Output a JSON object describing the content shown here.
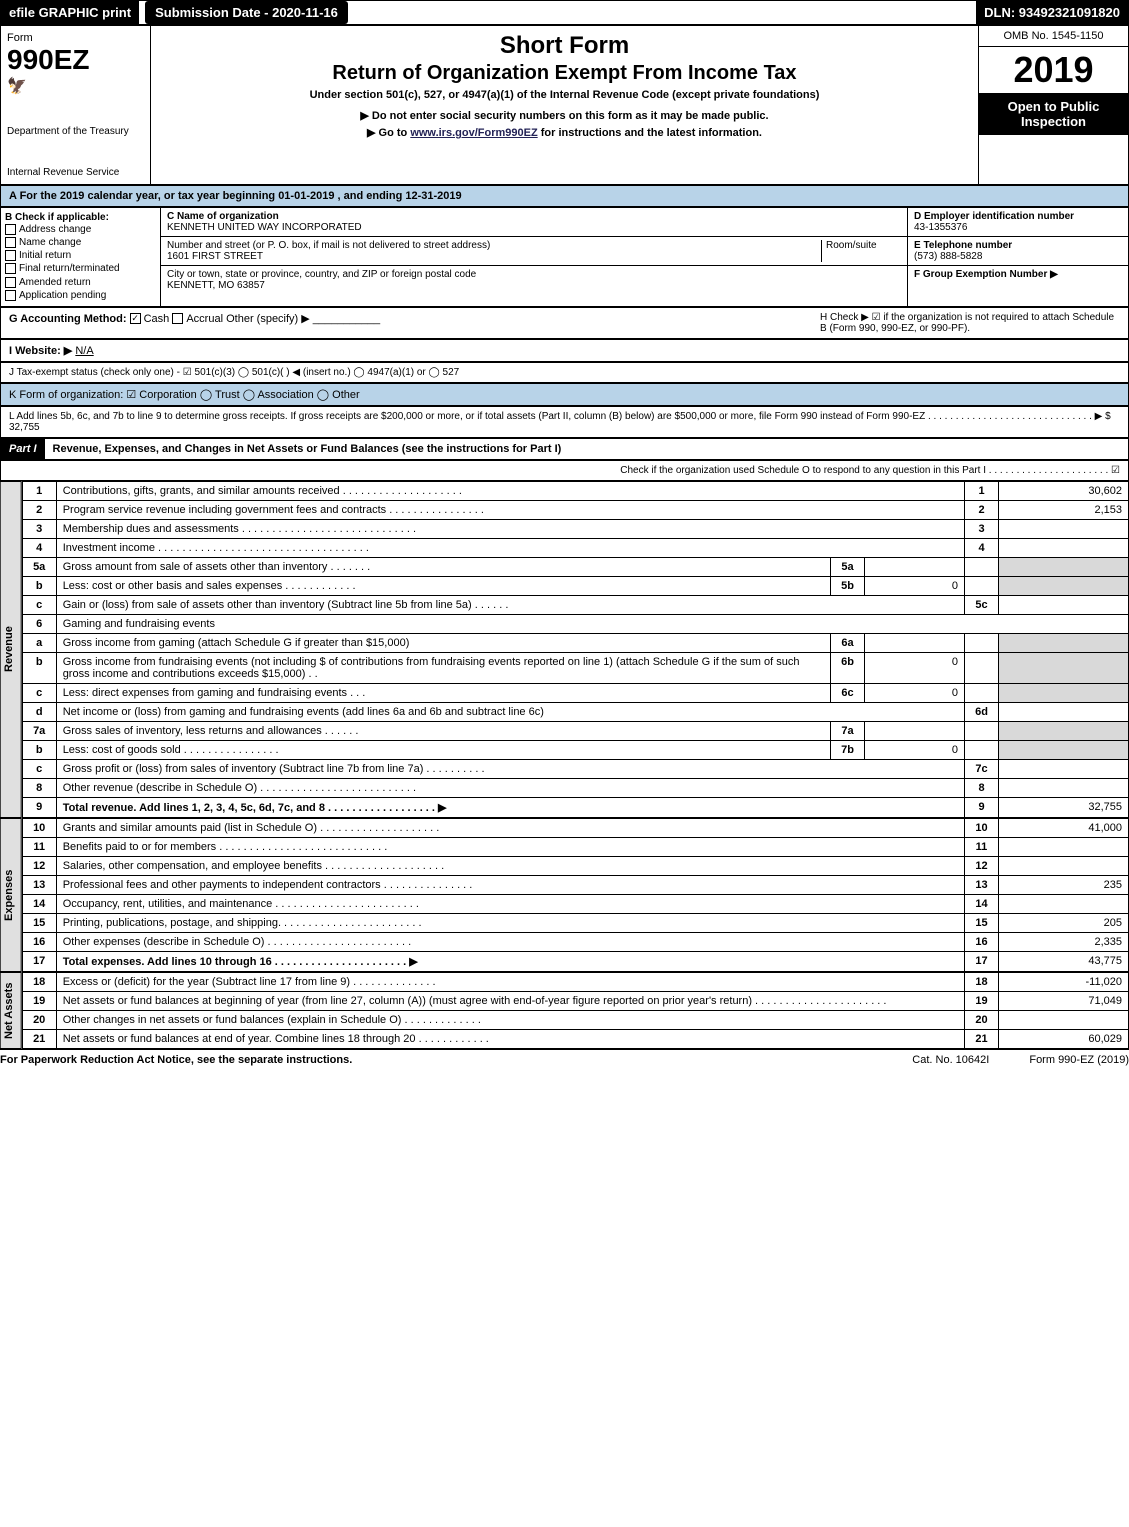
{
  "topbar": {
    "efile": "efile GRAPHIC print",
    "subdate_label": "Submission Date - 2020-11-16",
    "dln": "DLN: 93492321091820"
  },
  "header": {
    "form_word": "Form",
    "form_num": "990EZ",
    "dept": "Department of the Treasury",
    "irs": "Internal Revenue Service",
    "title1": "Short Form",
    "title2": "Return of Organization Exempt From Income Tax",
    "sub1": "Under section 501(c), 527, or 4947(a)(1) of the Internal Revenue Code (except private foundations)",
    "sub2": "▶ Do not enter social security numbers on this form as it may be made public.",
    "sub3_pre": "▶ Go to ",
    "sub3_link": "www.irs.gov/Form990EZ",
    "sub3_post": " for instructions and the latest information.",
    "omb": "OMB No. 1545-1150",
    "year": "2019",
    "open": "Open to Public Inspection"
  },
  "taxyear": "A For the 2019 calendar year, or tax year beginning 01-01-2019 , and ending 12-31-2019",
  "boxB": {
    "label": "B Check if applicable:",
    "items": [
      "Address change",
      "Name change",
      "Initial return",
      "Final return/terminated",
      "Amended return",
      "Application pending"
    ]
  },
  "boxC": {
    "name_label": "C Name of organization",
    "name": "KENNETH UNITED WAY INCORPORATED",
    "street_label": "Number and street (or P. O. box, if mail is not delivered to street address)",
    "room_label": "Room/suite",
    "street": "1601 FIRST STREET",
    "city_label": "City or town, state or province, country, and ZIP or foreign postal code",
    "city": "KENNETT, MO  63857"
  },
  "boxD": {
    "label": "D Employer identification number",
    "value": "43-1355376"
  },
  "boxE": {
    "label": "E Telephone number",
    "value": "(573) 888-5828"
  },
  "boxF": {
    "label": "F Group Exemption Number  ▶",
    "value": ""
  },
  "boxG": {
    "label": "G Accounting Method:",
    "cash": "Cash",
    "accrual": "Accrual",
    "other": "Other (specify) ▶"
  },
  "boxH": {
    "label": "H  Check ▶ ☑ if the organization is not required to attach Schedule B (Form 990, 990-EZ, or 990-PF)."
  },
  "boxI": {
    "label": "I Website: ▶",
    "value": "N/A"
  },
  "boxJ": {
    "label": "J Tax-exempt status (check only one) - ☑ 501(c)(3)  ◯ 501(c)( ) ◀ (insert no.)  ◯ 4947(a)(1) or  ◯ 527"
  },
  "boxK": {
    "label": "K Form of organization:  ☑ Corporation  ◯ Trust  ◯ Association  ◯ Other"
  },
  "boxL": {
    "label": "L Add lines 5b, 6c, and 7b to line 9 to determine gross receipts. If gross receipts are $200,000 or more, or if total assets (Part II, column (B) below) are $500,000 or more, file Form 990 instead of Form 990-EZ . . . . . . . . . . . . . . . . . . . . . . . . . . . . . . ▶ $ 32,755"
  },
  "part1": {
    "header": "Part I",
    "title": "Revenue, Expenses, and Changes in Net Assets or Fund Balances (see the instructions for Part I)",
    "check": "Check if the organization used Schedule O to respond to any question in this Part I . . . . . . . . . . . . . . . . . . . . . . ☑"
  },
  "sections": {
    "revenue": "Revenue",
    "expenses": "Expenses",
    "netassets": "Net Assets"
  },
  "lines": [
    {
      "n": "1",
      "desc": "Contributions, gifts, grants, and similar amounts received . . . . . . . . . . . . . . . . . . . .",
      "box": "1",
      "amt": "30,602"
    },
    {
      "n": "2",
      "desc": "Program service revenue including government fees and contracts . . . . . . . . . . . . . . . .",
      "box": "2",
      "amt": "2,153"
    },
    {
      "n": "3",
      "desc": "Membership dues and assessments . . . . . . . . . . . . . . . . . . . . . . . . . . . . .",
      "box": "3",
      "amt": ""
    },
    {
      "n": "4",
      "desc": "Investment income . . . . . . . . . . . . . . . . . . . . . . . . . . . . . . . . . . .",
      "box": "4",
      "amt": ""
    },
    {
      "n": "5a",
      "desc": "Gross amount from sale of assets other than inventory . . . . . . .",
      "mid": "5a",
      "midamt": ""
    },
    {
      "n": "b",
      "desc": "Less: cost or other basis and sales expenses . . . . . . . . . . . .",
      "mid": "5b",
      "midamt": "0"
    },
    {
      "n": "c",
      "desc": "Gain or (loss) from sale of assets other than inventory (Subtract line 5b from line 5a) . . . . . .",
      "box": "5c",
      "amt": ""
    },
    {
      "n": "6",
      "desc": "Gaming and fundraising events"
    },
    {
      "n": "a",
      "desc": "Gross income from gaming (attach Schedule G if greater than $15,000)",
      "mid": "6a",
      "midamt": ""
    },
    {
      "n": "b",
      "desc": "Gross income from fundraising events (not including $               of contributions from fundraising events reported on line 1) (attach Schedule G if the sum of such gross income and contributions exceeds $15,000)   . .",
      "mid": "6b",
      "midamt": "0"
    },
    {
      "n": "c",
      "desc": "Less: direct expenses from gaming and fundraising events    . . .",
      "mid": "6c",
      "midamt": "0"
    },
    {
      "n": "d",
      "desc": "Net income or (loss) from gaming and fundraising events (add lines 6a and 6b and subtract line 6c)",
      "box": "6d",
      "amt": ""
    },
    {
      "n": "7a",
      "desc": "Gross sales of inventory, less returns and allowances . . . . . .",
      "mid": "7a",
      "midamt": ""
    },
    {
      "n": "b",
      "desc": "Less: cost of goods sold       . . . . . . . . . . . . . . . .",
      "mid": "7b",
      "midamt": "0"
    },
    {
      "n": "c",
      "desc": "Gross profit or (loss) from sales of inventory (Subtract line 7b from line 7a) . . . . . . . . . .",
      "box": "7c",
      "amt": ""
    },
    {
      "n": "8",
      "desc": "Other revenue (describe in Schedule O) . . . . . . . . . . . . . . . . . . . . . . . . . .",
      "box": "8",
      "amt": ""
    },
    {
      "n": "9",
      "desc": "Total revenue. Add lines 1, 2, 3, 4, 5c, 6d, 7c, and 8  . . . . . . . . . . . . . . . . . .   ▶",
      "box": "9",
      "amt": "32,755",
      "bold": true
    }
  ],
  "exp_lines": [
    {
      "n": "10",
      "desc": "Grants and similar amounts paid (list in Schedule O) . . . . . . . . . . . . . . . . . . . .",
      "box": "10",
      "amt": "41,000"
    },
    {
      "n": "11",
      "desc": "Benefits paid to or for members   . . . . . . . . . . . . . . . . . . . . . . . . . . . .",
      "box": "11",
      "amt": ""
    },
    {
      "n": "12",
      "desc": "Salaries, other compensation, and employee benefits . . . . . . . . . . . . . . . . . . . .",
      "box": "12",
      "amt": ""
    },
    {
      "n": "13",
      "desc": "Professional fees and other payments to independent contractors . . . . . . . . . . . . . . .",
      "box": "13",
      "amt": "235"
    },
    {
      "n": "14",
      "desc": "Occupancy, rent, utilities, and maintenance . . . . . . . . . . . . . . . . . . . . . . . .",
      "box": "14",
      "amt": ""
    },
    {
      "n": "15",
      "desc": "Printing, publications, postage, and shipping. . . . . . . . . . . . . . . . . . . . . . . .",
      "box": "15",
      "amt": "205"
    },
    {
      "n": "16",
      "desc": "Other expenses (describe in Schedule O)   . . . . . . . . . . . . . . . . . . . . . . . .",
      "box": "16",
      "amt": "2,335"
    },
    {
      "n": "17",
      "desc": "Total expenses. Add lines 10 through 16   . . . . . . . . . . . . . . . . . . . . . .  ▶",
      "box": "17",
      "amt": "43,775",
      "bold": true
    }
  ],
  "na_lines": [
    {
      "n": "18",
      "desc": "Excess or (deficit) for the year (Subtract line 17 from line 9)      . . . . . . . . . . . . . .",
      "box": "18",
      "amt": "-11,020"
    },
    {
      "n": "19",
      "desc": "Net assets or fund balances at beginning of year (from line 27, column (A)) (must agree with end-of-year figure reported on prior year's return) . . . . . . . . . . . . . . . . . . . . . .",
      "box": "19",
      "amt": "71,049"
    },
    {
      "n": "20",
      "desc": "Other changes in net assets or fund balances (explain in Schedule O) . . . . . . . . . . . . .",
      "box": "20",
      "amt": ""
    },
    {
      "n": "21",
      "desc": "Net assets or fund balances at end of year. Combine lines 18 through 20 . . . . . . . . . . . .",
      "box": "21",
      "amt": "60,029"
    }
  ],
  "footer": {
    "left": "For Paperwork Reduction Act Notice, see the separate instructions.",
    "center": "Cat. No. 10642I",
    "right": "Form 990-EZ (2019)"
  },
  "colors": {
    "header_bg": "#b8d3e8",
    "grey": "#d9d9d9"
  }
}
